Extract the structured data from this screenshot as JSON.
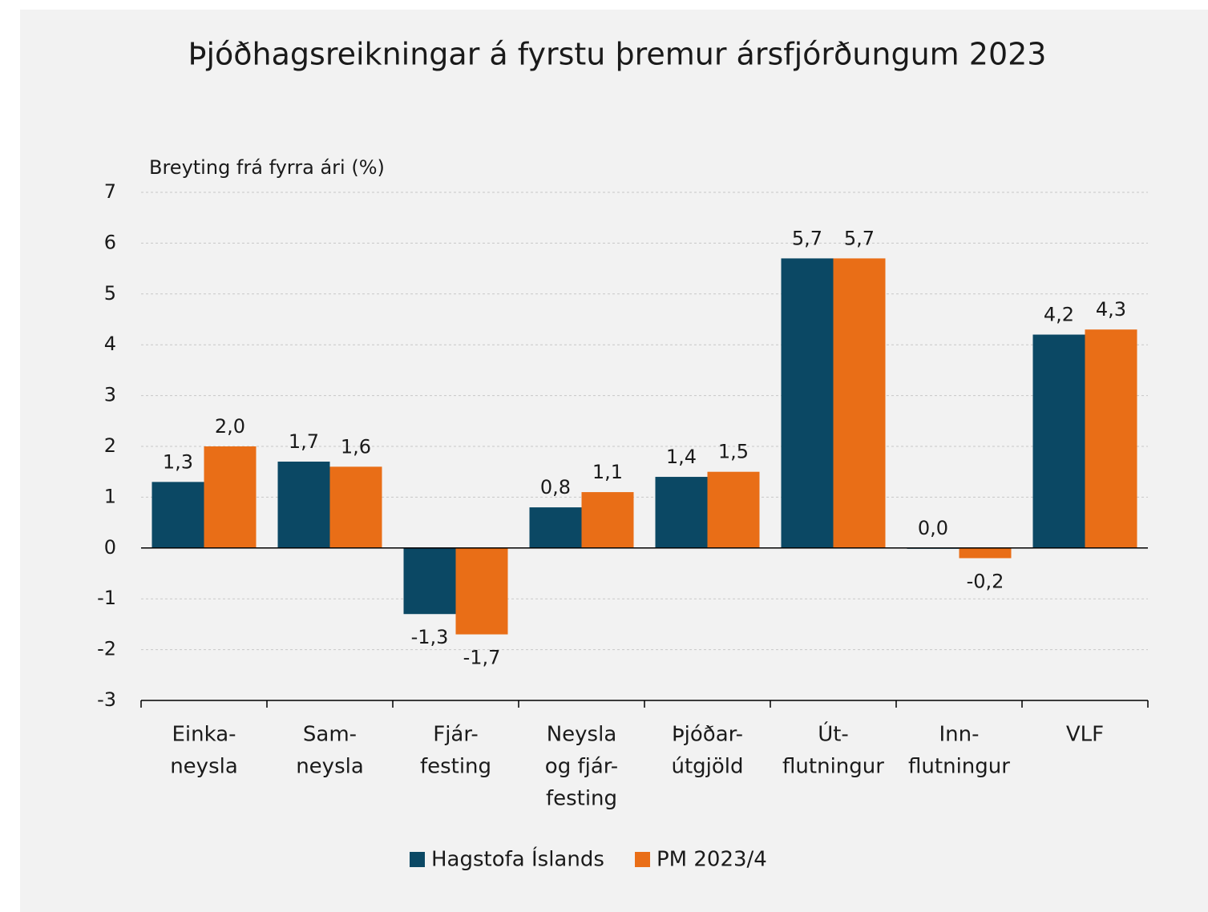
{
  "chart_data": {
    "type": "bar",
    "title": "Þjóðhagsreikningar á fyrstu þremur ársfjórðungum 2023",
    "y_label": "Breyting frá fyrra ári (%)",
    "categories": [
      [
        "Einka-",
        "neysla"
      ],
      [
        "Sam-",
        "neysla"
      ],
      [
        "Fjár-",
        "festing"
      ],
      [
        "Neysla",
        "og fjár-",
        "festing"
      ],
      [
        "Þjóðar-",
        "útgjöld"
      ],
      [
        "Út-",
        "flutningur"
      ],
      [
        "Inn-",
        "flutningur"
      ],
      [
        "VLF"
      ]
    ],
    "series": [
      {
        "name": "Hagstofa Íslands",
        "color": "#0b4864",
        "values": [
          1.3,
          1.7,
          -1.3,
          0.8,
          1.4,
          5.7,
          0.0,
          4.2
        ],
        "value_labels": [
          "1,3",
          "1,7",
          "-1,3",
          "0,8",
          "1,4",
          "5,7",
          "0,0",
          "4,2"
        ]
      },
      {
        "name": "PM 2023/4",
        "color": "#e96e17",
        "values": [
          2.0,
          1.6,
          -1.7,
          1.1,
          1.5,
          5.7,
          -0.2,
          4.3
        ],
        "value_labels": [
          "2,0",
          "1,6",
          "-1,7",
          "1,1",
          "1,5",
          "5,7",
          "-0,2",
          "4,3"
        ]
      }
    ],
    "ylim": [
      -3,
      7
    ],
    "yticks": [
      -3,
      -2,
      -1,
      0,
      1,
      2,
      3,
      4,
      5,
      6,
      7
    ],
    "grid": true,
    "legend": "bottom"
  }
}
